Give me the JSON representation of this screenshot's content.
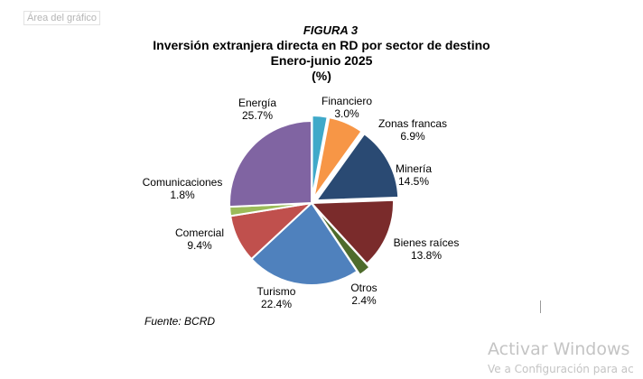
{
  "chart_area_label": "Área del gráfico",
  "figure_label": "FIGURA 3",
  "title_line1": "Inversión extranjera directa en RD por sector de destino",
  "title_line2": "Enero-junio 2025",
  "title_line3": "(%)",
  "source": "Fuente: BCRD",
  "watermark": {
    "line1": "Activar Windows",
    "line2": "Ve a Configuración para ac"
  },
  "chart_data": {
    "type": "pie",
    "title": "Inversión extranjera directa en RD por sector de destino",
    "subtitle": "Enero-junio 2025",
    "unit": "%",
    "slices": [
      {
        "label": "Financiero",
        "value": 3.0,
        "value_label": "3.0%",
        "color": "#3fa9c9"
      },
      {
        "label": "Zonas francas",
        "value": 6.9,
        "value_label": "6.9%",
        "color": "#f79646"
      },
      {
        "label": "Minería",
        "value": 14.5,
        "value_label": "14.5%",
        "color": "#2a4a73"
      },
      {
        "label": "Bienes raíces",
        "value": 13.8,
        "value_label": "13.8%",
        "color": "#7a2b2b"
      },
      {
        "label": "Otros",
        "value": 2.4,
        "value_label": "2.4%",
        "color": "#4e6b2b"
      },
      {
        "label": "Turismo",
        "value": 22.4,
        "value_label": "22.4%",
        "color": "#4f81bd"
      },
      {
        "label": "Comercial",
        "value": 9.4,
        "value_label": "9.4%",
        "color": "#c0504d"
      },
      {
        "label": "Comunicaciones",
        "value": 1.8,
        "value_label": "1.8%",
        "color": "#9bbb59"
      },
      {
        "label": "Energía",
        "value": 25.7,
        "value_label": "25.7%",
        "color": "#8064a2"
      }
    ]
  }
}
